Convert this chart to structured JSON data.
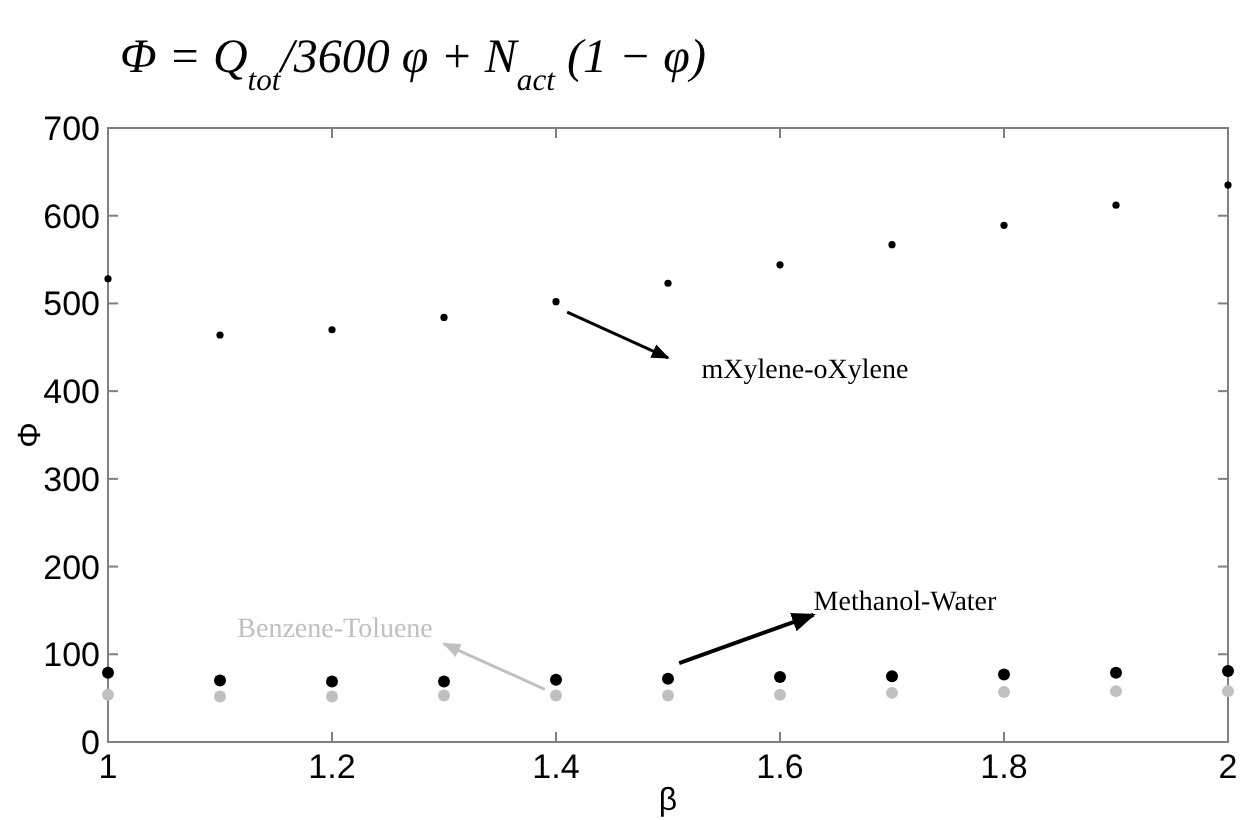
{
  "chart_data": {
    "type": "scatter",
    "title": "Φ = Q$_{tot}$/3600 φ + N$_{act}$ (1 − φ)",
    "xlabel": "β",
    "ylabel": "Φ",
    "x": [
      1,
      1.1,
      1.2,
      1.3,
      1.4,
      1.5,
      1.6,
      1.7,
      1.8,
      1.9,
      2
    ],
    "series": [
      {
        "name": "mXylene-oXylene",
        "color": "#000000",
        "values": [
          528,
          464,
          470,
          484,
          502,
          523,
          544,
          567,
          589,
          612,
          635
        ]
      },
      {
        "name": "Methanol-Water",
        "color": "#000000",
        "values": [
          79,
          70,
          69,
          69,
          71,
          72,
          74,
          75,
          77,
          79,
          81
        ]
      },
      {
        "name": "Benzene-Toluene",
        "color": "#c0c0c0",
        "values": [
          54,
          52,
          52,
          53,
          53,
          53,
          54,
          56,
          57,
          58,
          58
        ]
      }
    ],
    "xlim": [
      1,
      2
    ],
    "xticks": [
      1,
      1.2,
      1.4,
      1.6,
      1.8,
      2
    ],
    "ylim": [
      0,
      700
    ],
    "yticks": [
      0,
      100,
      200,
      300,
      400,
      500,
      600,
      700
    ],
    "grid": false,
    "marker": "circle"
  }
}
